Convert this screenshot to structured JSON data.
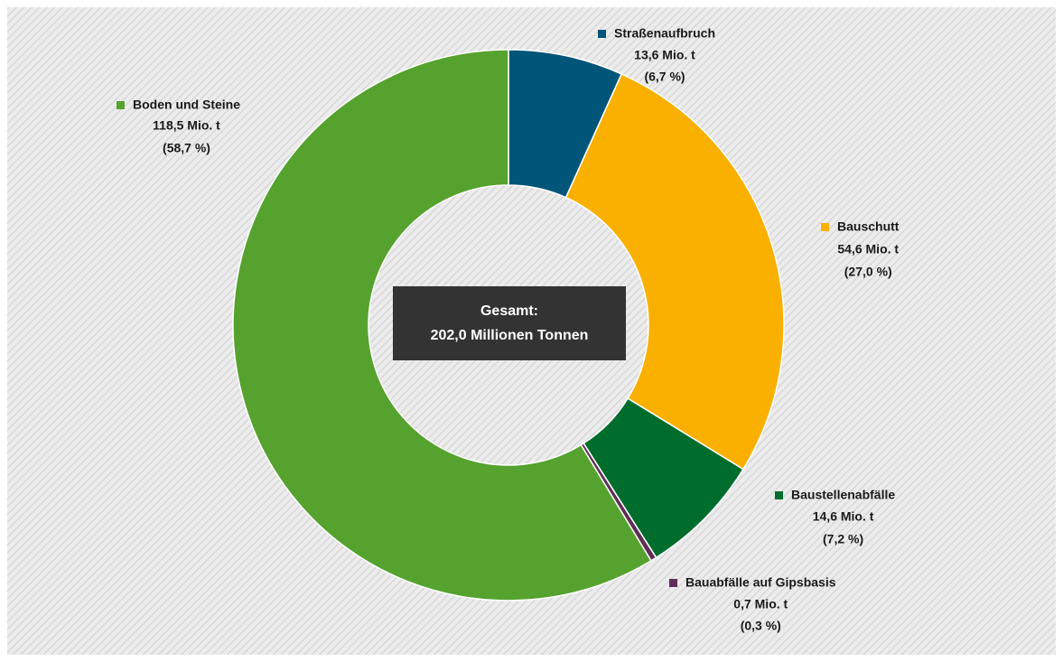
{
  "chart_data": {
    "type": "donut",
    "categories": [
      "Straßenaufbruch",
      "Bauschutt",
      "Baustellenabfälle",
      "Bauabfälle auf Gipsbasis",
      "Boden und Steine"
    ],
    "values": [
      13.6,
      54.6,
      14.6,
      0.7,
      118.5
    ],
    "value_labels": [
      "13,6 Mio. t",
      "54,6 Mio. t",
      "14,6 Mio. t",
      "0,7 Mio. t",
      "118,5 Mio. t"
    ],
    "percentage_labels": [
      "(6,7 %)",
      "(27,0 %)",
      "(7,2 %)",
      "(0,3 %)",
      "(58,7 %)"
    ],
    "colors": [
      "#005578",
      "#f9b000",
      "#006d2d",
      "#5f2e57",
      "#56a22f"
    ],
    "center_label": [
      "Gesamt:",
      "202,0 Millionen Tonnen"
    ]
  }
}
